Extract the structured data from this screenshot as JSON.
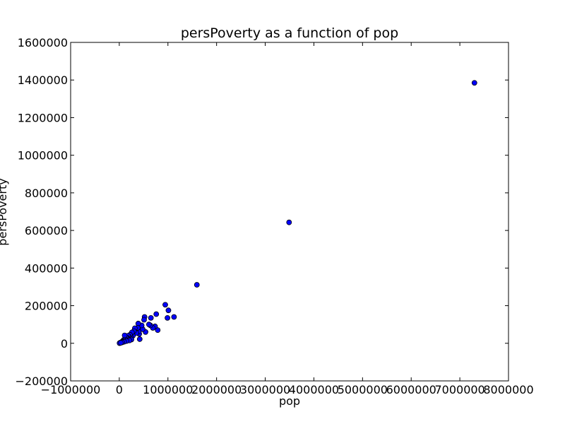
{
  "chart_data": {
    "type": "scatter",
    "title": "persPoverty as a function of pop",
    "xlabel": "pop",
    "ylabel": "persPoverty",
    "xlim": [
      -1000000,
      8000000
    ],
    "ylim": [
      -200000,
      1600000
    ],
    "xticks": [
      -1000000,
      0,
      1000000,
      2000000,
      3000000,
      4000000,
      5000000,
      6000000,
      7000000,
      8000000
    ],
    "yticks": [
      -200000,
      0,
      200000,
      400000,
      600000,
      800000,
      1000000,
      1200000,
      1400000,
      1600000
    ],
    "grid": false,
    "colors": {
      "marker": "#0000ff",
      "edge": "#000000"
    },
    "series": [
      {
        "x": [
          7300000,
          3490000,
          1595000,
          1125000,
          1010000,
          990000,
          945000,
          790000,
          760000,
          735000,
          690000,
          650000,
          640000,
          610000,
          540000,
          520000,
          510000,
          480000,
          460000,
          420000,
          410000,
          400000,
          390000,
          380000,
          350000,
          320000,
          300000,
          280000,
          260000,
          240000,
          220000,
          200000,
          180000,
          170000,
          160000,
          140000,
          130000,
          120000,
          110000,
          100000,
          90000,
          80000,
          70000,
          60000,
          50000,
          40000,
          30000,
          20000,
          12000,
          6000,
          250000,
          210000,
          150000,
          100000,
          60000,
          30000
        ],
        "y": [
          1385000,
          643000,
          311000,
          140000,
          175000,
          135000,
          205000,
          70000,
          155000,
          90000,
          82000,
          135000,
          95000,
          100000,
          60000,
          140000,
          125000,
          75000,
          95000,
          22000,
          50000,
          62000,
          105000,
          82000,
          55000,
          80000,
          65000,
          40000,
          58000,
          32000,
          45000,
          35000,
          40000,
          28000,
          25000,
          30000,
          20000,
          22000,
          42000,
          15000,
          18000,
          12000,
          10000,
          9000,
          7000,
          5000,
          4000,
          3000,
          2000,
          800,
          20000,
          15000,
          12000,
          8000,
          5000,
          2500
        ]
      }
    ]
  }
}
